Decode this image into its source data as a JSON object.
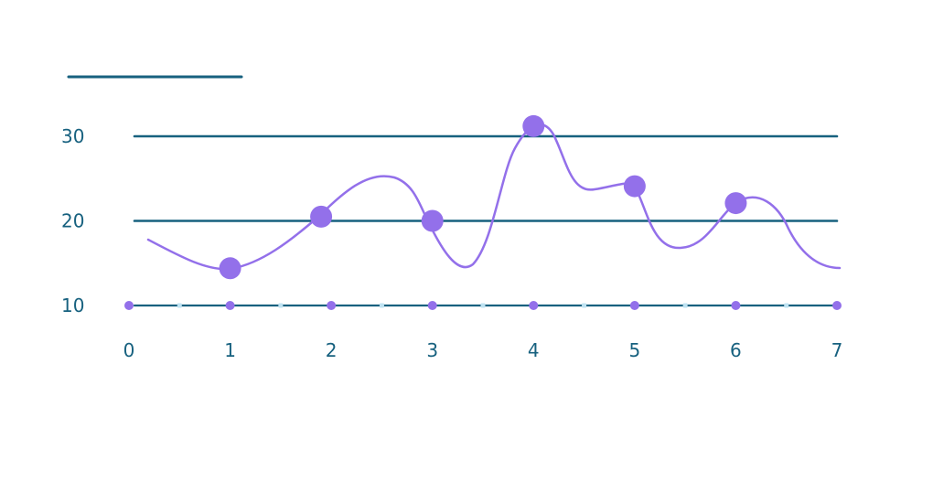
{
  "chart_data": {
    "type": "line",
    "x_ticks": [
      0,
      1,
      2,
      3,
      4,
      5,
      6,
      7
    ],
    "y_ticks": [
      10,
      20,
      30
    ],
    "xlim": [
      0,
      7
    ],
    "ylim": [
      10,
      30
    ],
    "grid": true,
    "series": [
      {
        "color": "#9370ea",
        "x": [
          1,
          1.9,
          3,
          4,
          5,
          6
        ],
        "y": [
          14.4,
          20.5,
          20.0,
          31.2,
          24.1,
          22.1
        ]
      }
    ],
    "baseline_points_y": 10,
    "colors": {
      "axis": "#17617f",
      "series": "#9370ea",
      "minor_marker": "#bfe3f2"
    }
  }
}
